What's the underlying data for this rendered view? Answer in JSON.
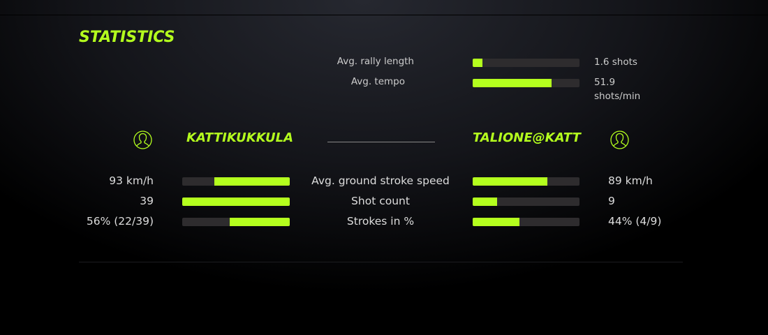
{
  "title": "STATISTICS",
  "colors": {
    "accent": "#b4ff1e",
    "track": "#2e2c2e"
  },
  "summary": [
    {
      "label": "Avg. rally length",
      "value": "1.6 shots",
      "fill": 0.09
    },
    {
      "label": "Avg. tempo",
      "value": "51.9 shots/min",
      "fill": 0.74
    }
  ],
  "players": {
    "left": {
      "name": "KATTIKUKKULA",
      "icon": "user-icon"
    },
    "right": {
      "name": "TALIONE@KATT",
      "icon": "user-icon"
    }
  },
  "rows": [
    {
      "label": "Avg. ground stroke speed",
      "left": "93 km/h",
      "left_fill": 0.7,
      "right": "89 km/h",
      "right_fill": 0.7
    },
    {
      "label": "Shot count",
      "left": "39",
      "left_fill": 1.0,
      "right": "9",
      "right_fill": 0.23
    },
    {
      "label": "Strokes in %",
      "left": "56% (22/39)",
      "left_fill": 0.56,
      "right": "44% (4/9)",
      "right_fill": 0.44
    }
  ]
}
